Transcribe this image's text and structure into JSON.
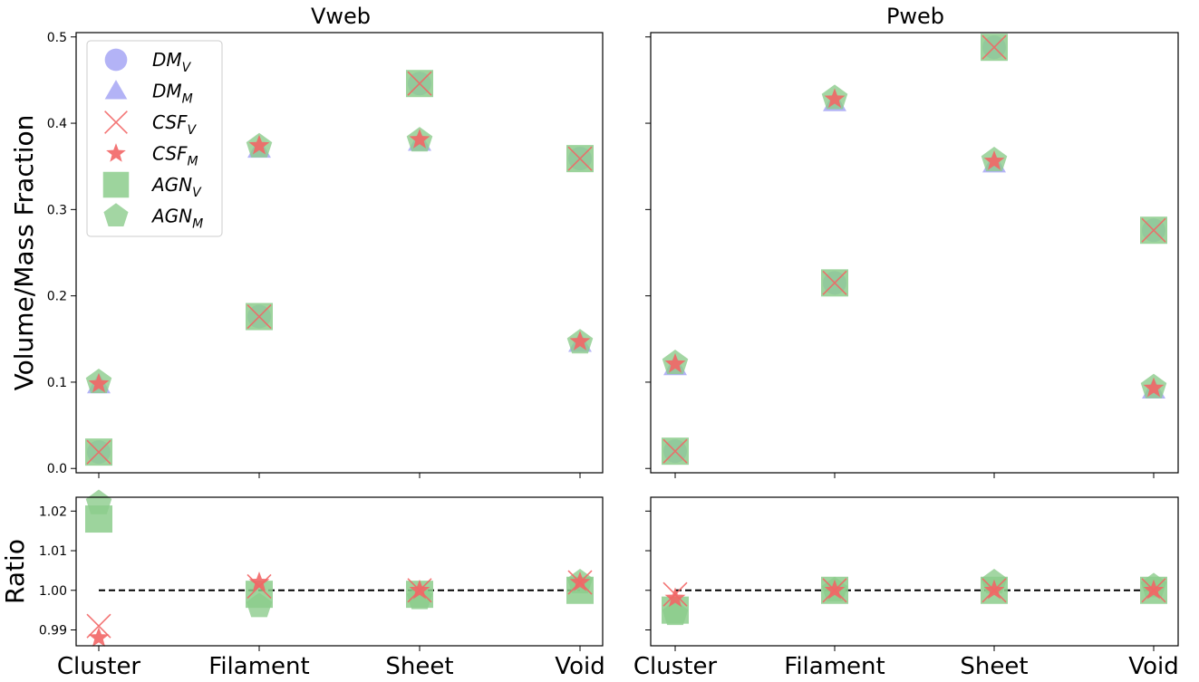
{
  "chart_data": [
    {
      "type": "scatter",
      "title": "Vweb",
      "ylabel": "Volume/Mass Fraction",
      "categories": [
        "Cluster",
        "Filament",
        "Sheet",
        "Void"
      ],
      "ylim": [
        -0.005,
        0.505
      ],
      "yticks": [
        "0.0",
        "0.1",
        "0.2",
        "0.3",
        "0.4",
        "0.5"
      ],
      "series": [
        {
          "name": "DM_V",
          "marker": "circle",
          "values": [
            0.019,
            0.176,
            0.446,
            0.359
          ]
        },
        {
          "name": "DM_M",
          "marker": "triangle",
          "values": [
            0.097,
            0.37,
            0.378,
            0.145
          ]
        },
        {
          "name": "CSF_V",
          "marker": "x",
          "values": [
            0.019,
            0.176,
            0.446,
            0.359
          ]
        },
        {
          "name": "CSF_M",
          "marker": "star",
          "values": [
            0.098,
            0.374,
            0.381,
            0.147
          ]
        },
        {
          "name": "AGN_V",
          "marker": "square",
          "values": [
            0.019,
            0.176,
            0.446,
            0.359
          ]
        },
        {
          "name": "AGN_M",
          "marker": "pentagon",
          "values": [
            0.1,
            0.373,
            0.38,
            0.146
          ]
        }
      ]
    },
    {
      "type": "scatter",
      "title": "Pweb",
      "categories": [
        "Cluster",
        "Filament",
        "Sheet",
        "Void"
      ],
      "ylim": [
        -0.005,
        0.505
      ],
      "series": [
        {
          "name": "DM_V",
          "marker": "circle",
          "values": [
            0.02,
            0.215,
            0.488,
            0.276
          ]
        },
        {
          "name": "DM_M",
          "marker": "triangle",
          "values": [
            0.118,
            0.424,
            0.353,
            0.091
          ]
        },
        {
          "name": "CSF_V",
          "marker": "x",
          "values": [
            0.02,
            0.215,
            0.488,
            0.276
          ]
        },
        {
          "name": "CSF_M",
          "marker": "star",
          "values": [
            0.121,
            0.428,
            0.356,
            0.093
          ]
        },
        {
          "name": "AGN_V",
          "marker": "square",
          "values": [
            0.02,
            0.215,
            0.488,
            0.276
          ]
        },
        {
          "name": "AGN_M",
          "marker": "pentagon",
          "values": [
            0.122,
            0.429,
            0.357,
            0.094
          ]
        }
      ]
    },
    {
      "type": "scatter",
      "ylabel": "Ratio",
      "categories": [
        "Cluster",
        "Filament",
        "Sheet",
        "Void"
      ],
      "ylim": [
        0.986,
        1.0235
      ],
      "yticks": [
        "0.99",
        "1.00",
        "1.01",
        "1.02"
      ],
      "reference_line": 1.0,
      "series": [
        {
          "name": "CSF_V",
          "marker": "x",
          "values": [
            0.991,
            1.001,
            1.0,
            1.002
          ]
        },
        {
          "name": "CSF_M",
          "marker": "star",
          "values": [
            0.988,
            1.002,
            1.0,
            1.002
          ]
        },
        {
          "name": "AGN_V",
          "marker": "square",
          "values": [
            1.018,
            0.999,
            0.999,
            1.0
          ]
        },
        {
          "name": "AGN_M",
          "marker": "pentagon",
          "values": [
            1.022,
            0.996,
            0.998,
            1.002
          ]
        }
      ]
    },
    {
      "type": "scatter",
      "categories": [
        "Cluster",
        "Filament",
        "Sheet",
        "Void"
      ],
      "ylim": [
        0.986,
        1.0235
      ],
      "reference_line": 1.0,
      "series": [
        {
          "name": "CSF_V",
          "marker": "x",
          "values": [
            0.999,
            1.0,
            1.0,
            1.0
          ]
        },
        {
          "name": "CSF_M",
          "marker": "star",
          "values": [
            0.998,
            1.0,
            1.0,
            1.0
          ]
        },
        {
          "name": "AGN_V",
          "marker": "square",
          "values": [
            0.995,
            1.0,
            1.0,
            1.0
          ]
        },
        {
          "name": "AGN_M",
          "marker": "pentagon",
          "values": [
            0.994,
            1.0,
            1.002,
            1.001
          ]
        }
      ]
    }
  ],
  "legend": {
    "placement": "top-left",
    "entries": [
      {
        "base": "DM",
        "sub": "V",
        "marker": "circle"
      },
      {
        "base": "DM",
        "sub": "M",
        "marker": "triangle"
      },
      {
        "base": "CSF",
        "sub": "V",
        "marker": "x"
      },
      {
        "base": "CSF",
        "sub": "M",
        "marker": "star"
      },
      {
        "base": "AGN",
        "sub": "V",
        "marker": "square"
      },
      {
        "base": "AGN",
        "sub": "M",
        "marker": "pentagon"
      }
    ]
  },
  "colors": {
    "DM": "#a6a6f5",
    "CSF": "#f26666",
    "AGN": "#8ccc8c"
  }
}
